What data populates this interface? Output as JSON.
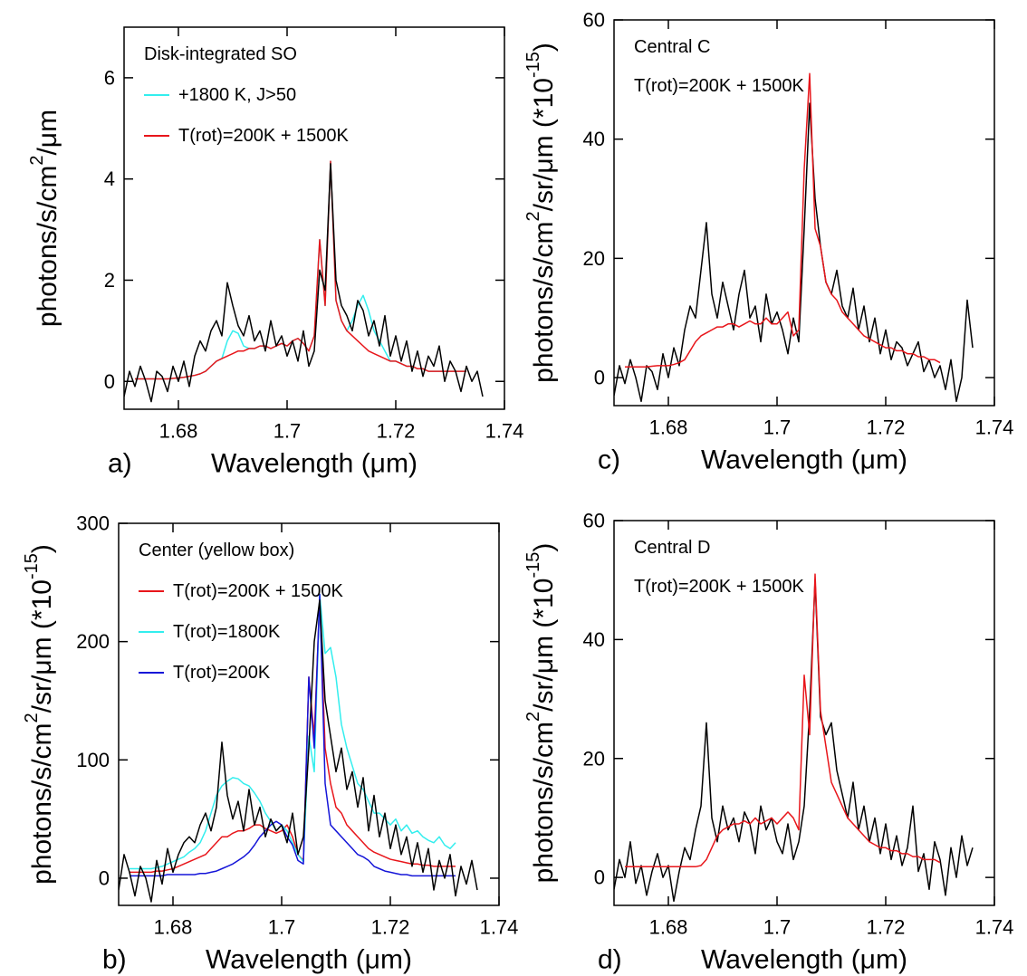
{
  "chart_data": [
    {
      "type": "line",
      "panel_label": "a)",
      "annotation": "Disk-integrated SO",
      "legend_lines": true,
      "xlabel": "Wavelength (μm)",
      "ylabel": [
        "photons/s/cm",
        "2",
        "/μm"
      ],
      "xlim": [
        1.67,
        1.74
      ],
      "ylim": [
        -0.55,
        7
      ],
      "xticks": [
        1.68,
        1.7,
        1.72,
        1.74
      ],
      "yticks": [
        0,
        2,
        4,
        6
      ],
      "x": [
        1.67,
        1.671,
        1.672,
        1.673,
        1.674,
        1.675,
        1.676,
        1.677,
        1.678,
        1.679,
        1.68,
        1.681,
        1.682,
        1.683,
        1.684,
        1.685,
        1.686,
        1.687,
        1.688,
        1.689,
        1.69,
        1.691,
        1.692,
        1.693,
        1.694,
        1.695,
        1.696,
        1.697,
        1.698,
        1.699,
        1.7,
        1.701,
        1.702,
        1.703,
        1.704,
        1.705,
        1.706,
        1.707,
        1.708,
        1.709,
        1.71,
        1.711,
        1.712,
        1.713,
        1.714,
        1.715,
        1.716,
        1.717,
        1.718,
        1.719,
        1.72,
        1.721,
        1.722,
        1.723,
        1.724,
        1.725,
        1.726,
        1.727,
        1.728,
        1.729,
        1.73,
        1.731,
        1.732,
        1.733,
        1.734,
        1.735,
        1.736
      ],
      "series": [
        {
          "name": "+1800 K, J>50",
          "color": "#33eeee",
          "values": [
            null,
            null,
            0.05,
            0.05,
            0.05,
            0.05,
            0.05,
            0.05,
            0.05,
            0.06,
            0.07,
            0.08,
            0.1,
            0.12,
            0.15,
            0.2,
            0.3,
            0.4,
            0.45,
            0.8,
            1.0,
            0.95,
            0.7,
            0.65,
            0.65,
            0.7,
            0.7,
            0.65,
            0.7,
            0.75,
            0.7,
            0.8,
            0.85,
            0.75,
            0.6,
            0.9,
            2.8,
            1.5,
            4.35,
            1.6,
            1.2,
            1.0,
            1.2,
            1.5,
            1.7,
            1.4,
            1.0,
            0.8,
            0.6,
            0.4,
            0.4,
            0.35,
            0.3,
            0.3,
            0.25,
            0.25,
            0.2,
            0.2,
            0.2,
            0.2,
            0.2,
            0.2,
            0.2,
            0.2,
            null,
            null,
            null
          ]
        },
        {
          "name": "T(rot)=200K + 1500K",
          "color": "#e8161b",
          "values": [
            null,
            null,
            0.05,
            0.05,
            0.05,
            0.05,
            0.05,
            0.05,
            0.05,
            0.06,
            0.07,
            0.08,
            0.1,
            0.12,
            0.15,
            0.2,
            0.3,
            0.4,
            0.45,
            0.5,
            0.55,
            0.6,
            0.6,
            0.65,
            0.65,
            0.7,
            0.7,
            0.65,
            0.7,
            0.75,
            0.7,
            0.8,
            0.85,
            0.75,
            0.6,
            0.9,
            2.8,
            1.5,
            4.35,
            1.6,
            1.2,
            1.0,
            0.9,
            0.8,
            0.7,
            0.6,
            0.55,
            0.5,
            0.45,
            0.4,
            0.4,
            0.35,
            0.3,
            0.3,
            0.25,
            0.25,
            0.2,
            0.2,
            0.2,
            0.2,
            0.2,
            0.2,
            0.2,
            0.2,
            null,
            null,
            null
          ]
        },
        {
          "color": "#000000",
          "values": [
            -0.3,
            0.2,
            -0.1,
            0.3,
            0.0,
            -0.4,
            0.2,
            0.1,
            -0.2,
            0.3,
            0.0,
            0.4,
            -0.1,
            0.5,
            0.8,
            0.6,
            1.0,
            1.2,
            0.9,
            1.95,
            1.5,
            1.1,
            0.9,
            1.3,
            0.8,
            1.0,
            0.6,
            1.2,
            0.7,
            0.9,
            0.5,
            0.8,
            0.4,
            1.0,
            0.3,
            0.6,
            2.2,
            1.8,
            4.3,
            2.0,
            1.5,
            1.3,
            1.0,
            1.6,
            1.4,
            0.9,
            1.2,
            0.7,
            1.3,
            0.5,
            0.9,
            0.4,
            0.8,
            0.2,
            0.6,
            0.1,
            0.5,
            0.3,
            0.7,
            0.0,
            0.4,
            0.2,
            -0.2,
            0.3,
            0.0,
            0.2,
            -0.3
          ]
        }
      ]
    },
    {
      "type": "line",
      "panel_label": "b)",
      "annotation": "Center (yellow box)",
      "legend_lines": true,
      "xlabel": "Wavelength (μm)",
      "ylabel": [
        "photons/s/cm",
        "2",
        "/sr/μm (*10",
        "-15",
        ")"
      ],
      "xlim": [
        1.67,
        1.74
      ],
      "ylim": [
        -23,
        300
      ],
      "xticks": [
        1.68,
        1.7,
        1.72,
        1.74
      ],
      "yticks": [
        0,
        100,
        200,
        300
      ],
      "x": [
        1.67,
        1.671,
        1.672,
        1.673,
        1.674,
        1.675,
        1.676,
        1.677,
        1.678,
        1.679,
        1.68,
        1.681,
        1.682,
        1.683,
        1.684,
        1.685,
        1.686,
        1.687,
        1.688,
        1.689,
        1.69,
        1.691,
        1.692,
        1.693,
        1.694,
        1.695,
        1.696,
        1.697,
        1.698,
        1.699,
        1.7,
        1.701,
        1.702,
        1.703,
        1.704,
        1.705,
        1.706,
        1.707,
        1.708,
        1.709,
        1.71,
        1.711,
        1.712,
        1.713,
        1.714,
        1.715,
        1.716,
        1.717,
        1.718,
        1.719,
        1.72,
        1.721,
        1.722,
        1.723,
        1.724,
        1.725,
        1.726,
        1.727,
        1.728,
        1.729,
        1.73,
        1.731,
        1.732,
        1.733,
        1.734,
        1.735,
        1.736
      ],
      "series": [
        {
          "name": "T(rot)=200K + 1500K",
          "color": "#e8161b",
          "values": [
            null,
            null,
            5,
            5,
            5,
            5,
            5,
            6,
            6,
            7,
            8,
            10,
            12,
            14,
            16,
            18,
            20,
            25,
            30,
            35,
            35,
            38,
            40,
            40,
            42,
            45,
            45,
            42,
            40,
            38,
            40,
            45,
            35,
            20,
            15,
            170,
            120,
            235,
            110,
            80,
            60,
            55,
            45,
            40,
            35,
            30,
            25,
            22,
            20,
            18,
            16,
            15,
            14,
            13,
            12,
            12,
            11,
            11,
            10,
            10,
            10,
            10,
            10,
            null,
            null,
            null,
            null
          ]
        },
        {
          "name": "T(rot)=1800K",
          "color": "#33eeee",
          "values": [
            null,
            null,
            8,
            8,
            8,
            8,
            8,
            9,
            10,
            12,
            14,
            16,
            18,
            22,
            25,
            30,
            40,
            55,
            70,
            78,
            82,
            85,
            84,
            80,
            78,
            72,
            65,
            55,
            48,
            40,
            45,
            40,
            30,
            20,
            14,
            120,
            90,
            240,
            190,
            195,
            170,
            130,
            110,
            95,
            80,
            75,
            65,
            55,
            55,
            50,
            45,
            50,
            40,
            45,
            38,
            40,
            35,
            32,
            30,
            35,
            28,
            25,
            30,
            null,
            null,
            null,
            null
          ]
        },
        {
          "name": "T(rot)=200K",
          "color": "#1515d8",
          "values": [
            null,
            null,
            2,
            2,
            2,
            2,
            2,
            2,
            2,
            3,
            3,
            3,
            3,
            3,
            3,
            4,
            4,
            5,
            6,
            8,
            10,
            12,
            15,
            18,
            22,
            28,
            35,
            40,
            45,
            48,
            45,
            35,
            28,
            15,
            12,
            170,
            110,
            240,
            80,
            45,
            40,
            35,
            30,
            25,
            20,
            18,
            15,
            10,
            8,
            6,
            5,
            4,
            3,
            3,
            2,
            2,
            2,
            2,
            2,
            2,
            2,
            2,
            2,
            null,
            null,
            null,
            null
          ]
        },
        {
          "color": "#000000",
          "values": [
            -10,
            20,
            5,
            -15,
            10,
            0,
            -20,
            15,
            -5,
            25,
            5,
            20,
            30,
            35,
            30,
            45,
            55,
            40,
            60,
            115,
            70,
            50,
            65,
            40,
            75,
            45,
            60,
            35,
            50,
            40,
            45,
            30,
            55,
            20,
            35,
            110,
            200,
            235,
            150,
            120,
            90,
            110,
            75,
            90,
            60,
            85,
            40,
            70,
            35,
            55,
            25,
            45,
            20,
            35,
            10,
            30,
            5,
            25,
            -10,
            15,
            0,
            20,
            -15,
            10,
            -5,
            15,
            -10
          ]
        }
      ]
    },
    {
      "type": "line",
      "panel_label": "c)",
      "annotation": "Central C",
      "legend_lines": false,
      "xlabel": "Wavelength (μm)",
      "ylabel": [
        "photons/s/cm",
        "2",
        "/sr/μm (*10",
        "-15",
        ")"
      ],
      "xlim": [
        1.67,
        1.74
      ],
      "ylim": [
        -4.7,
        60
      ],
      "xticks": [
        1.68,
        1.7,
        1.72,
        1.74
      ],
      "yticks": [
        0,
        20,
        40,
        60
      ],
      "x": [
        1.67,
        1.671,
        1.672,
        1.673,
        1.674,
        1.675,
        1.676,
        1.677,
        1.678,
        1.679,
        1.68,
        1.681,
        1.682,
        1.683,
        1.684,
        1.685,
        1.686,
        1.687,
        1.688,
        1.689,
        1.69,
        1.691,
        1.692,
        1.693,
        1.694,
        1.695,
        1.696,
        1.697,
        1.698,
        1.699,
        1.7,
        1.701,
        1.702,
        1.703,
        1.704,
        1.705,
        1.706,
        1.707,
        1.708,
        1.709,
        1.71,
        1.711,
        1.712,
        1.713,
        1.714,
        1.715,
        1.716,
        1.717,
        1.718,
        1.719,
        1.72,
        1.721,
        1.722,
        1.723,
        1.724,
        1.725,
        1.726,
        1.727,
        1.728,
        1.729,
        1.73,
        1.731,
        1.732,
        1.733,
        1.734,
        1.735,
        1.736
      ],
      "series": [
        {
          "color": "#000000",
          "values": [
            -3,
            2,
            -1,
            3,
            0,
            -4,
            2,
            1,
            -2,
            4,
            0,
            5,
            2,
            8,
            12,
            10,
            18,
            26,
            14,
            10,
            16,
            12,
            8,
            14,
            18,
            10,
            12,
            6,
            14,
            9,
            11,
            8,
            4,
            10,
            6,
            25,
            46,
            30,
            22,
            16,
            14,
            18,
            12,
            10,
            15,
            8,
            12,
            6,
            10,
            4,
            8,
            3,
            6,
            5,
            2,
            4,
            6,
            1,
            3,
            0,
            2,
            -2,
            3,
            -4,
            0,
            13,
            5
          ]
        },
        {
          "name": "T(rot)=200K + 1500K",
          "color": "#e8161b",
          "values": [
            null,
            null,
            1.8,
            1.8,
            1.8,
            1.8,
            1.8,
            1.9,
            2,
            2,
            2,
            2.2,
            2.5,
            3,
            4.5,
            6,
            7,
            7.5,
            8,
            8.5,
            8.5,
            9,
            9,
            8.5,
            9,
            9.5,
            9,
            9,
            10,
            9,
            9,
            10,
            11,
            7,
            8,
            35,
            51,
            25,
            22,
            16,
            14,
            13,
            11,
            10,
            9,
            8,
            7,
            6.5,
            6,
            5.5,
            5,
            5,
            4.5,
            4.5,
            4,
            4,
            3.5,
            3.5,
            3,
            3,
            2.5,
            null,
            null,
            null,
            null,
            null,
            null
          ]
        }
      ]
    },
    {
      "type": "line",
      "panel_label": "d)",
      "annotation": "Central D",
      "legend_lines": false,
      "xlabel": "Wavelength (μm)",
      "ylabel": [
        "photons/s/cm",
        "2",
        "/sr/μm (*10",
        "-15",
        ")"
      ],
      "xlim": [
        1.67,
        1.74
      ],
      "ylim": [
        -4.7,
        60
      ],
      "xticks": [
        1.68,
        1.7,
        1.72,
        1.74
      ],
      "yticks": [
        0,
        20,
        40,
        60
      ],
      "x": [
        1.67,
        1.671,
        1.672,
        1.673,
        1.674,
        1.675,
        1.676,
        1.677,
        1.678,
        1.679,
        1.68,
        1.681,
        1.682,
        1.683,
        1.684,
        1.685,
        1.686,
        1.687,
        1.688,
        1.689,
        1.69,
        1.691,
        1.692,
        1.693,
        1.694,
        1.695,
        1.696,
        1.697,
        1.698,
        1.699,
        1.7,
        1.701,
        1.702,
        1.703,
        1.704,
        1.705,
        1.706,
        1.707,
        1.708,
        1.709,
        1.71,
        1.711,
        1.712,
        1.713,
        1.714,
        1.715,
        1.716,
        1.717,
        1.718,
        1.719,
        1.72,
        1.721,
        1.722,
        1.723,
        1.724,
        1.725,
        1.726,
        1.727,
        1.728,
        1.729,
        1.73,
        1.731,
        1.732,
        1.733,
        1.734,
        1.735,
        1.736
      ],
      "series": [
        {
          "color": "#000000",
          "values": [
            -2,
            3,
            0,
            6,
            -1,
            2,
            -3,
            1,
            4,
            0,
            2,
            -4,
            1,
            5,
            3,
            8,
            12,
            26,
            10,
            6,
            12,
            8,
            10,
            6,
            11,
            9,
            4,
            12,
            8,
            10,
            6,
            4,
            9,
            3,
            6,
            12,
            28,
            50,
            27,
            24,
            26,
            18,
            14,
            10,
            16,
            8,
            12,
            6,
            10,
            4,
            9,
            3,
            7,
            2,
            5,
            12,
            1,
            4,
            -2,
            6,
            3,
            -3,
            5,
            0,
            7,
            2,
            5
          ]
        },
        {
          "name": "T(rot)=200K + 1500K",
          "color": "#e8161b",
          "values": [
            null,
            null,
            1.8,
            1.8,
            1.8,
            1.8,
            1.8,
            1.8,
            1.8,
            1.8,
            1.8,
            1.8,
            1.8,
            1.8,
            1.8,
            1.8,
            2.0,
            3,
            5,
            7,
            8,
            8.5,
            9,
            9,
            9.5,
            9,
            10,
            9,
            9.5,
            10,
            9,
            10,
            11,
            10,
            8,
            34,
            24,
            51,
            28,
            22,
            16,
            14,
            12,
            10,
            9,
            8,
            7,
            6,
            5.5,
            5,
            5,
            4.5,
            4.5,
            4,
            4,
            3.5,
            3.5,
            3,
            3,
            3,
            2.5,
            null,
            null,
            null,
            null,
            null,
            null
          ]
        }
      ]
    }
  ]
}
